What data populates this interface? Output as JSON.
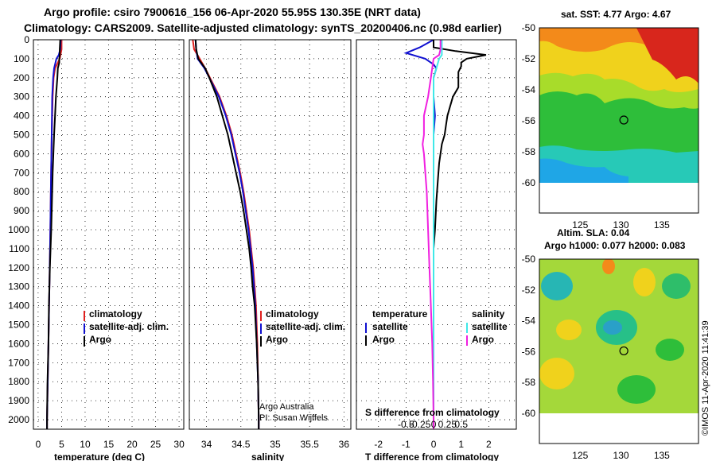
{
  "title": {
    "line1": "Argo profile: csiro 7900616_156 06-Apr-2020 55.95S 130.35E (NRT data)",
    "line2": "Climatology: CARS2009. Satellite-adjusted climatology: synTS_20200406.nc (0.98d earlier)"
  },
  "colors": {
    "climatology": "#e0201e",
    "satellite_temp": "#1010d0",
    "argo": "#000000",
    "satellite_sal": "#40e8e8",
    "argo_sal": "#f020e0"
  },
  "chart_data": [
    {
      "type": "line",
      "name": "temperature-profile",
      "xlabel": "temperature (deg C)",
      "ylabel": "depth",
      "xlim": [
        -1,
        31
      ],
      "ylim": [
        2050,
        0
      ],
      "xticks": [
        0,
        5,
        10,
        15,
        20,
        25,
        30
      ],
      "yticks": [
        0,
        100,
        200,
        300,
        400,
        500,
        600,
        700,
        800,
        900,
        1000,
        1100,
        1200,
        1300,
        1400,
        1500,
        1600,
        1700,
        1800,
        1900,
        2000
      ],
      "legend": [
        "climatology",
        "satellite-adj. clim.",
        "Argo"
      ],
      "series": [
        {
          "name": "climatology",
          "color_key": "climatology",
          "depth": [
            0,
            50,
            100,
            150,
            200,
            300,
            500,
            800,
            1000,
            1300,
            1600,
            2000,
            2050
          ],
          "values": [
            5.0,
            5.0,
            4.6,
            3.6,
            3.3,
            3.1,
            2.9,
            2.7,
            2.6,
            2.4,
            2.2,
            1.9,
            1.9
          ]
        },
        {
          "name": "satellite-adj. clim.",
          "color_key": "satellite_temp",
          "depth": [
            0,
            50,
            80,
            100,
            150,
            200,
            300,
            500,
            800,
            1000,
            1300,
            1600,
            2000,
            2050
          ],
          "values": [
            4.8,
            4.7,
            4.4,
            3.9,
            3.4,
            3.2,
            3.0,
            2.9,
            2.7,
            2.6,
            2.4,
            2.2,
            1.9,
            1.9
          ]
        },
        {
          "name": "Argo",
          "color_key": "argo",
          "depth": [
            0,
            50,
            80,
            100,
            120,
            150,
            200,
            300,
            400,
            500,
            700,
            900,
            1000,
            1200,
            1400,
            1600,
            1800,
            2000,
            2050
          ],
          "values": [
            4.7,
            4.6,
            4.6,
            4.5,
            4.5,
            4.2,
            4.1,
            3.8,
            3.6,
            3.4,
            3.1,
            2.9,
            2.8,
            2.5,
            2.3,
            2.2,
            2.0,
            1.9,
            1.9
          ]
        }
      ]
    },
    {
      "type": "line",
      "name": "salinity-profile",
      "xlabel": "salinity",
      "xlim": [
        33.75,
        36.1
      ],
      "ylim": [
        2050,
        0
      ],
      "xticks": [
        34,
        34.5,
        35,
        35.5,
        36
      ],
      "xtick_labels": [
        "34",
        "34.5",
        "35",
        "35.5",
        "36"
      ],
      "legend": [
        "climatology",
        "satellite-adj. clim.",
        "Argo"
      ],
      "annotation": [
        "Argo Australia",
        "PI: Susan Wijffels"
      ],
      "series": [
        {
          "name": "climatology",
          "color_key": "climatology",
          "depth": [
            0,
            50,
            100,
            150,
            200,
            300,
            400,
            500,
            600,
            700,
            800,
            900,
            1000,
            1100,
            1200,
            1300,
            1400,
            1600,
            1800,
            2000,
            2050
          ],
          "values": [
            33.8,
            33.82,
            33.9,
            33.98,
            34.05,
            34.19,
            34.29,
            34.37,
            34.43,
            34.49,
            34.54,
            34.58,
            34.62,
            34.65,
            34.68,
            34.7,
            34.72,
            34.74,
            34.75,
            34.76,
            34.76
          ]
        },
        {
          "name": "satellite-adj. clim.",
          "color_key": "satellite_temp",
          "depth": [
            0,
            50,
            100,
            150,
            200,
            300,
            400,
            500,
            600,
            700,
            800,
            900,
            1000,
            1100,
            1200,
            1300,
            1400,
            1600,
            1800,
            2000,
            2050
          ],
          "values": [
            33.84,
            33.85,
            33.87,
            33.97,
            34.04,
            34.18,
            34.28,
            34.36,
            34.42,
            34.48,
            34.53,
            34.57,
            34.61,
            34.64,
            34.67,
            34.69,
            34.71,
            34.73,
            34.75,
            34.76,
            34.76
          ]
        },
        {
          "name": "Argo",
          "color_key": "argo",
          "depth": [
            0,
            50,
            100,
            150,
            200,
            300,
            400,
            500,
            600,
            700,
            800,
            900,
            1000,
            1100,
            1200,
            1300,
            1400,
            1600,
            1800,
            2000,
            2050
          ],
          "values": [
            33.84,
            33.85,
            33.88,
            33.98,
            34.04,
            34.15,
            34.23,
            34.31,
            34.37,
            34.43,
            34.49,
            34.54,
            34.58,
            34.62,
            34.65,
            34.67,
            34.7,
            34.73,
            34.75,
            34.76,
            34.76
          ]
        }
      ]
    },
    {
      "type": "line",
      "name": "difference-profile",
      "xlabel": "T difference from climatology",
      "x2label": "S difference from climatology",
      "xlim": [
        -2.8,
        3.0
      ],
      "ylim": [
        2050,
        0
      ],
      "xticks": [
        -2,
        -1,
        0,
        1,
        2
      ],
      "xtick_labels": [
        "-2",
        "-1",
        "0",
        "1",
        "2"
      ],
      "top_ticks": [
        "-0.5",
        "-0.25",
        "0",
        "0.25",
        "0.5"
      ],
      "legend_temperature": "temperature",
      "legend_salinity": "salinity",
      "legend_labels": {
        "sat_t": "satellite",
        "argo_t": "Argo",
        "sat_s": "satellite",
        "argo_s": "Argo"
      },
      "series": [
        {
          "name": "T satellite",
          "color_key": "satellite_temp",
          "depth": [
            0,
            40,
            70,
            100,
            130,
            150,
            200,
            300,
            400,
            500,
            700,
            900,
            1200,
            1500,
            2000,
            2050
          ],
          "values": [
            0.0,
            -0.5,
            -1.0,
            -0.3,
            0.0,
            0.1,
            0.0,
            0.0,
            0.05,
            0.0,
            0.0,
            0.0,
            0.0,
            0.0,
            0.0,
            0.0
          ]
        },
        {
          "name": "T Argo",
          "color_key": "argo",
          "depth": [
            0,
            40,
            60,
            80,
            100,
            120,
            140,
            170,
            200,
            250,
            300,
            350,
            400,
            450,
            500,
            550,
            650,
            750,
            850,
            1000,
            1100,
            1200,
            1300,
            1400,
            1600,
            1800,
            2000,
            2050
          ],
          "values": [
            0.0,
            0.0,
            0.8,
            1.9,
            1.2,
            1.0,
            1.0,
            0.9,
            0.9,
            0.9,
            0.7,
            0.6,
            0.5,
            0.45,
            0.4,
            0.3,
            0.2,
            0.15,
            0.1,
            0.05,
            0.0,
            0.0,
            0.0,
            0.0,
            0.0,
            0.0,
            0.0,
            0.0
          ]
        },
        {
          "name": "S satellite",
          "color_key": "satellite_sal",
          "depth": [
            0,
            50,
            80,
            100,
            150,
            200,
            300,
            500,
            800,
            1000,
            1300,
            1600,
            2000,
            2050
          ],
          "values": [
            0.3,
            0.3,
            0.3,
            0.2,
            0.1,
            0.0,
            0.0,
            0.0,
            0.0,
            0.0,
            0.0,
            0.0,
            0.0,
            0.0
          ]
        },
        {
          "name": "S Argo",
          "color_key": "argo_sal",
          "depth": [
            0,
            50,
            80,
            100,
            150,
            200,
            300,
            400,
            500,
            550,
            600,
            700,
            800,
            1000,
            1200,
            1400,
            1600,
            1800,
            2000,
            2050
          ],
          "values": [
            0.25,
            0.25,
            0.2,
            0.0,
            -0.05,
            -0.1,
            -0.2,
            -0.35,
            -0.35,
            -0.4,
            -0.35,
            -0.3,
            -0.25,
            -0.2,
            -0.15,
            -0.1,
            -0.05,
            -0.02,
            0.0,
            0.0
          ]
        }
      ]
    },
    {
      "type": "heatmap",
      "name": "sst-map",
      "title": "sat. SST: 4.77 Argo: 4.67",
      "xlim": [
        120,
        139.5
      ],
      "ylim": [
        -60,
        -50
      ],
      "xticks": [
        125,
        130,
        135
      ],
      "yticks": [
        -50,
        -52,
        -54,
        -56,
        -58,
        -60
      ],
      "profile_location": {
        "lon": 130.35,
        "lat": -55.95
      }
    },
    {
      "type": "heatmap",
      "name": "sla-map",
      "title_line1": "Altim. SLA: 0.04",
      "title_line2": "Argo h1000: 0.077 h2000: 0.083",
      "xlim": [
        120,
        139.5
      ],
      "ylim": [
        -60,
        -50
      ],
      "xticks": [
        125,
        130,
        135
      ],
      "yticks": [
        -50,
        -52,
        -54,
        -56,
        -58,
        -60
      ],
      "profile_location": {
        "lon": 130.35,
        "lat": -55.95
      }
    }
  ],
  "credit": "©IMOS 11-Apr-2020 11:41:39"
}
